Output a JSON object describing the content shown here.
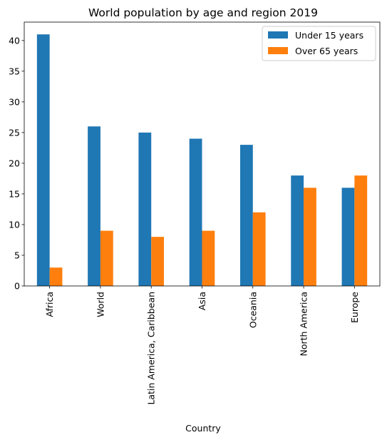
{
  "chart_data": {
    "type": "bar",
    "title": "World population by age and region 2019",
    "xlabel": "Country",
    "ylabel": "",
    "categories": [
      "Africa",
      "World",
      "Latin America, Caribbean",
      "Asia",
      "Oceania",
      "North America",
      "Europe"
    ],
    "series": [
      {
        "name": "Under 15 years",
        "values": [
          41,
          26,
          25,
          24,
          23,
          18,
          16
        ],
        "color": "#1f77b4"
      },
      {
        "name": "Over 65 years",
        "values": [
          3,
          9,
          8,
          9,
          12,
          16,
          18
        ],
        "color": "#ff7f0e"
      }
    ],
    "ylim": [
      0,
      43
    ],
    "yticks": [
      0,
      5,
      10,
      15,
      20,
      25,
      30,
      35,
      40
    ],
    "grid": false,
    "legend": "top-right"
  }
}
